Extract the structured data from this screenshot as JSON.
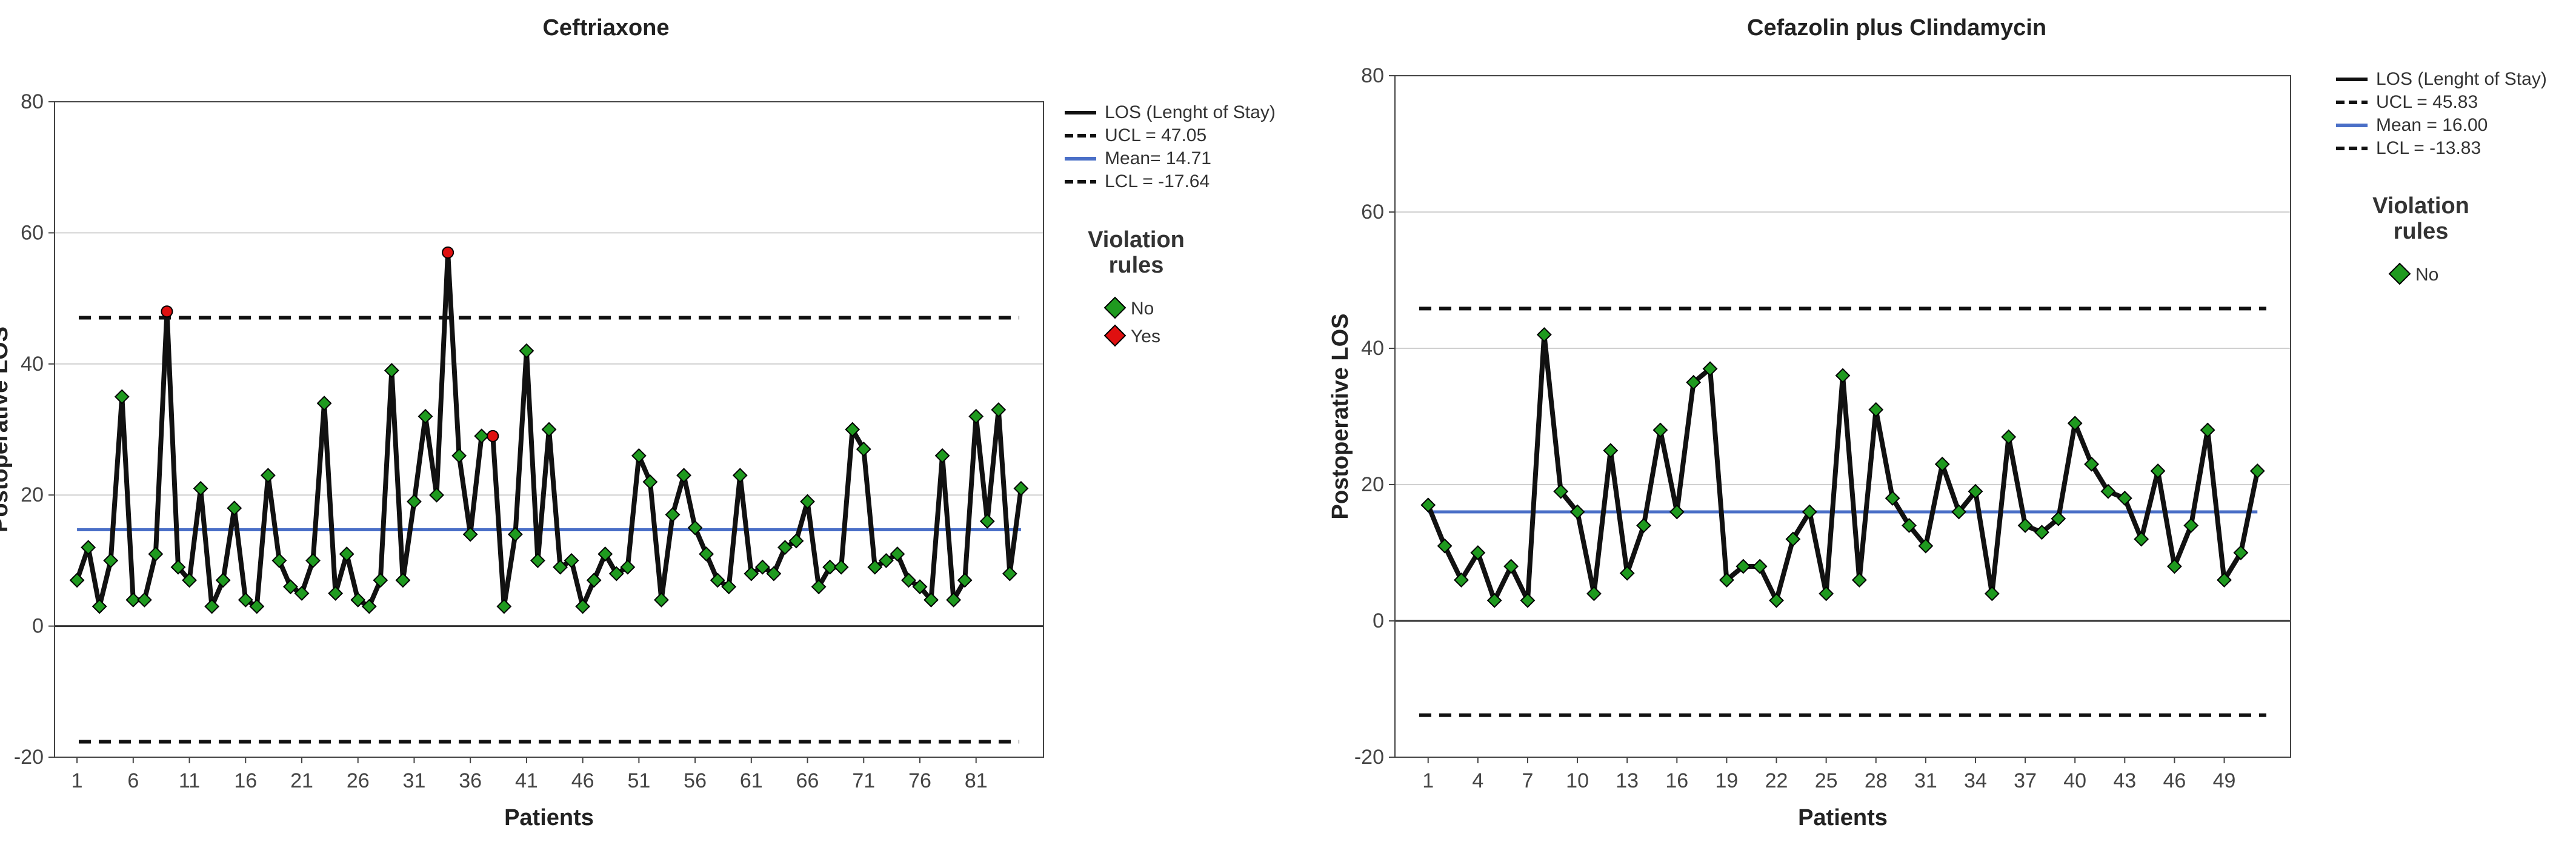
{
  "chart_data": [
    {
      "type": "line",
      "title": "Ceftriaxone",
      "xlabel": "Patients",
      "ylabel": "Postoperative LOS",
      "ylim": [
        -20,
        80
      ],
      "yticks": [
        -20,
        0,
        20,
        40,
        60,
        80
      ],
      "xlim": [
        -1,
        87
      ],
      "xticks": [
        1,
        6,
        11,
        16,
        21,
        26,
        31,
        36,
        41,
        46,
        51,
        56,
        61,
        66,
        71,
        76,
        81
      ],
      "grid": true,
      "legend": {
        "position": "top-right",
        "entries": [
          "LOS (Lenght of Stay)",
          "UCL = 47.05",
          "Mean= 14.71",
          "LCL = -17.64"
        ],
        "violation_title": "Violation rules",
        "violation_entries": [
          {
            "label": "No",
            "color": "#1f9a1f"
          },
          {
            "label": "Yes",
            "color": "#e01010"
          }
        ]
      },
      "ucl": 47.05,
      "mean": 14.71,
      "lcl": -17.64,
      "values": [
        7,
        12,
        3,
        10,
        35,
        4,
        4,
        11,
        48,
        9,
        7,
        21,
        3,
        7,
        18,
        4,
        3,
        23,
        10,
        6,
        5,
        10,
        34,
        5,
        11,
        4,
        3,
        7,
        39,
        7,
        19,
        32,
        20,
        57,
        26,
        14,
        29,
        29,
        3,
        14,
        42,
        10,
        30,
        9,
        10,
        3,
        7,
        11,
        8,
        9,
        26,
        22,
        4,
        17,
        23,
        15,
        11,
        7,
        6,
        23,
        8,
        9,
        8,
        12,
        13,
        19,
        6,
        9,
        9,
        30,
        27,
        9,
        10,
        11,
        7,
        6,
        4,
        26,
        4,
        7,
        32,
        16,
        33,
        8,
        21
      ],
      "violations": [
        9,
        34,
        38
      ]
    },
    {
      "type": "line",
      "title": "Cefazolin plus Clindamycin",
      "xlabel": "Patients",
      "ylabel": "Postoperative LOS",
      "ylim": [
        -20,
        80
      ],
      "yticks": [
        -20,
        0,
        20,
        40,
        60,
        80
      ],
      "xlim": [
        -1,
        53
      ],
      "xticks": [
        1,
        4,
        7,
        10,
        13,
        16,
        19,
        22,
        25,
        28,
        31,
        34,
        37,
        40,
        43,
        46,
        49
      ],
      "grid": true,
      "legend": {
        "position": "top-right",
        "entries": [
          "LOS (Lenght of Stay)",
          "UCL = 45.83",
          "Mean = 16.00",
          "LCL = -13.83"
        ],
        "violation_title": "Violation rules",
        "violation_entries": [
          {
            "label": "No",
            "color": "#1f9a1f"
          }
        ]
      },
      "ucl": 45.83,
      "mean": 16.0,
      "lcl": -13.83,
      "values": [
        17,
        11,
        6,
        10,
        3,
        8,
        3,
        42,
        19,
        16,
        4,
        25,
        7,
        14,
        28,
        16,
        35,
        37,
        6,
        8,
        8,
        3,
        12,
        16,
        4,
        36,
        6,
        31,
        18,
        14,
        11,
        23,
        16,
        19,
        4,
        27,
        14,
        13,
        15,
        29,
        23,
        19,
        18,
        12,
        22,
        8,
        14,
        28,
        6,
        10,
        22
      ],
      "violations": []
    }
  ],
  "colors": {
    "los_line": "#111111",
    "mean_line": "#4a6fc7",
    "ucl_lcl": "#111111",
    "marker_no": "#1f9a1f",
    "marker_yes": "#e01010",
    "grid": "#d0d0d0"
  }
}
